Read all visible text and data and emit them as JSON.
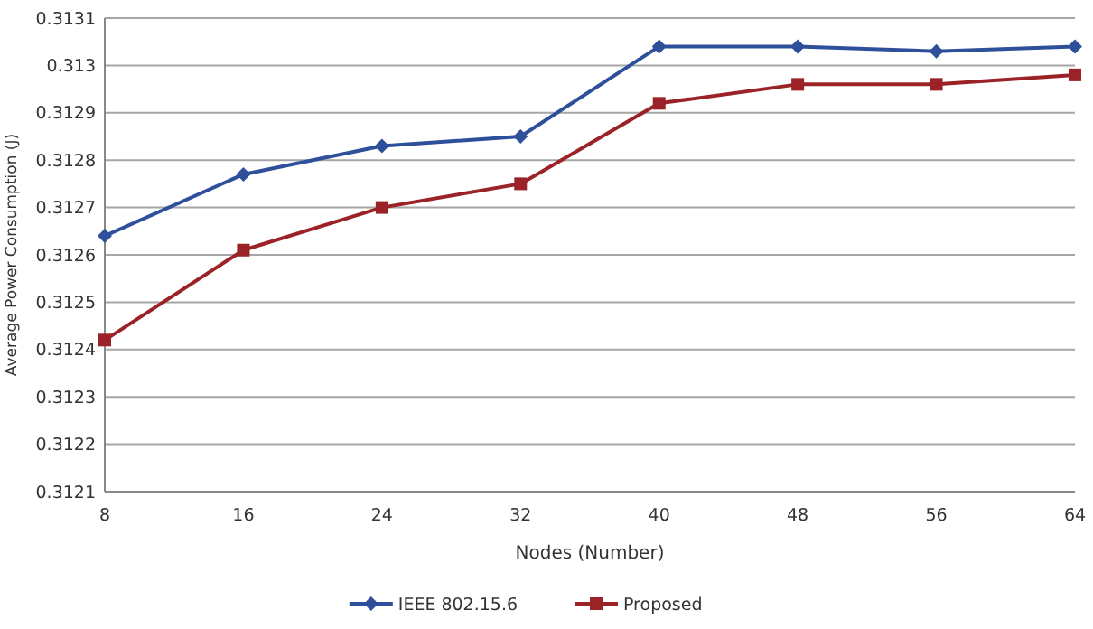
{
  "chart_data": {
    "type": "line",
    "xlabel": "Nodes (Number)",
    "ylabel": "Average Power Consumption (J)",
    "categories": [
      "8",
      "16",
      "24",
      "32",
      "40",
      "48",
      "56",
      "64"
    ],
    "series": [
      {
        "name": "IEEE 802.15.6",
        "color": "#2e4f9a",
        "marker": "diamond",
        "values": [
          0.31264,
          0.31277,
          0.31283,
          0.31285,
          0.31304,
          0.31304,
          0.31303,
          0.31304
        ]
      },
      {
        "name": "Proposed",
        "color": "#9b2226",
        "marker": "square",
        "values": [
          0.31242,
          0.31261,
          0.3127,
          0.31275,
          0.31292,
          0.31296,
          0.31296,
          0.31298
        ]
      }
    ],
    "ylim": [
      0.3121,
      0.3131
    ],
    "yticks": [
      0.3121,
      0.3122,
      0.3123,
      0.3124,
      0.3125,
      0.3126,
      0.3127,
      0.3128,
      0.3129,
      0.313,
      0.3131
    ],
    "grid": "y",
    "legend": "bottom"
  }
}
